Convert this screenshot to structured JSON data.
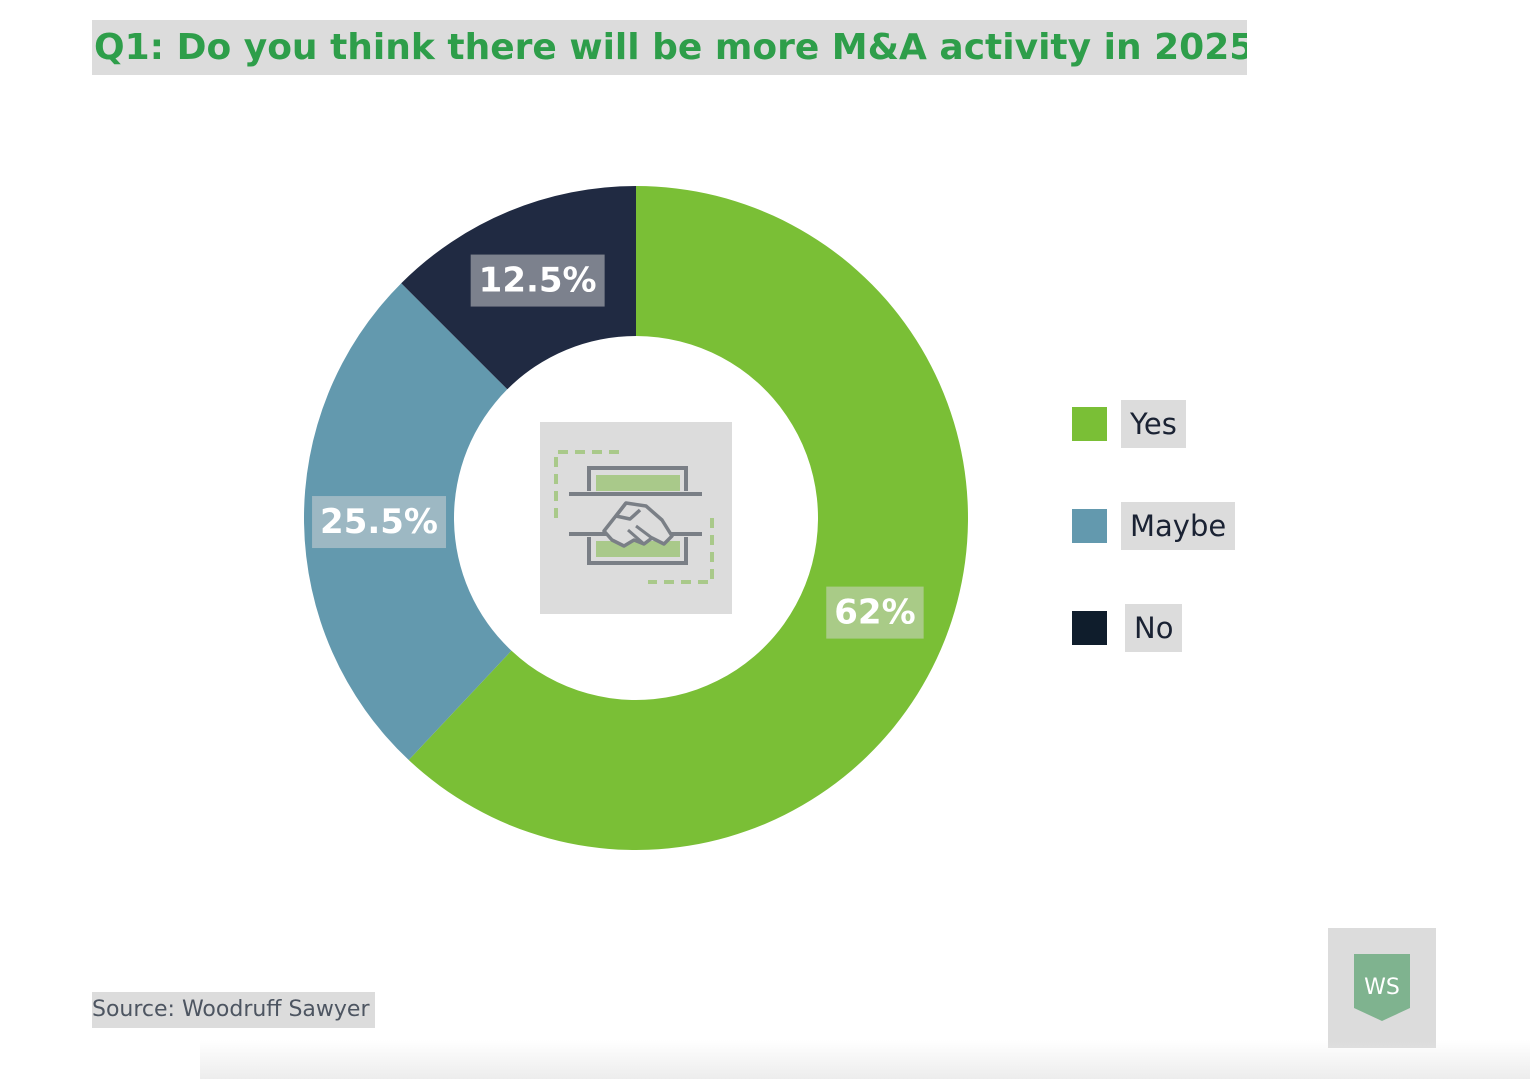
{
  "title": "Q1: Do you think there will be more M&A activity in 2025?",
  "chart_data": {
    "type": "pie",
    "style": "donut",
    "categories": [
      "Yes",
      "Maybe",
      "No"
    ],
    "values": [
      62,
      25.5,
      12.5
    ],
    "labels": [
      "62%",
      "25.5%",
      "12.5%"
    ],
    "colors": [
      "#7abf36",
      "#6399ae",
      "#202a42"
    ],
    "start_angle_deg": 0,
    "direction": "clockwise",
    "legend_position": "right",
    "center_icon": "handshake-icon"
  },
  "legend": {
    "items": [
      {
        "label": "Yes",
        "color": "#7abf36"
      },
      {
        "label": "Maybe",
        "color": "#6399ae"
      },
      {
        "label": "No",
        "color": "#0f1d2c"
      }
    ]
  },
  "source": "Source: Woodruff Sawyer",
  "logo": {
    "text": "WS",
    "icon": "shield-logo-icon",
    "color": "#7fb38f"
  }
}
